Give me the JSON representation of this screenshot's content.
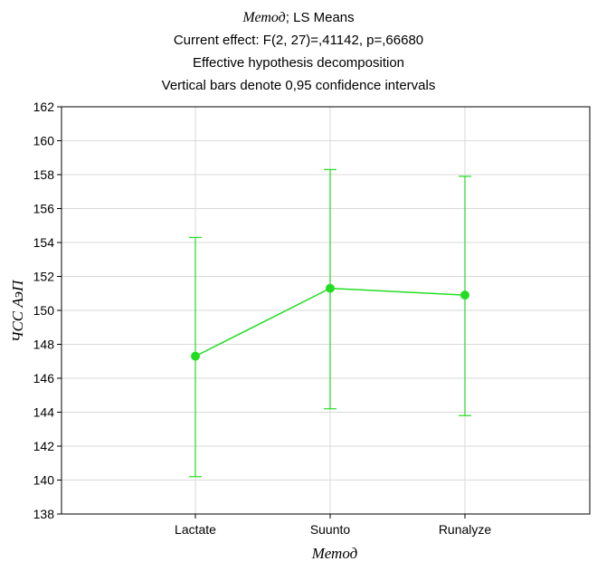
{
  "chart_data": {
    "type": "line",
    "title_main": "Метод",
    "title_suffix": "; LS Means",
    "subtitle_lines": [
      "Current effect: F(2, 27)=,41142, p=,66680",
      "Effective hypothesis decomposition",
      "Vertical bars denote 0,95 confidence intervals"
    ],
    "xlabel": "Метод",
    "ylabel": "ЧСС АэП",
    "categories": [
      "Lactate",
      "Suunto",
      "Runalyze"
    ],
    "series": [
      {
        "means": [
          147.3,
          151.3,
          150.9
        ],
        "ci_lower": [
          140.2,
          144.2,
          143.8
        ],
        "ci_upper": [
          154.3,
          158.3,
          157.9
        ],
        "color": "#22dd22"
      }
    ],
    "ylim": [
      138,
      162
    ],
    "yticks": [
      "138",
      "140",
      "142",
      "144",
      "146",
      "148",
      "150",
      "152",
      "154",
      "156",
      "158",
      "160",
      "162"
    ],
    "grid": true
  }
}
